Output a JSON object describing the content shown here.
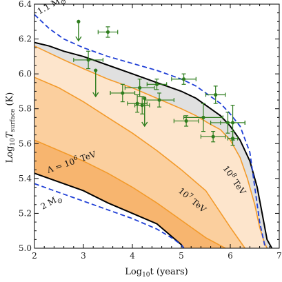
{
  "chart_data": {
    "type": "line",
    "xlabel": "Log",
    "xlabel_sub": "10",
    "xlabel_rest": "t (years)",
    "ylabel": "Log",
    "ylabel_sub": "10",
    "ylabel_T": "T",
    "ylabel_T_sub": "surface",
    "ylabel_rest": " (K)",
    "xlim": [
      2,
      7
    ],
    "ylim": [
      5.0,
      6.4
    ],
    "xticks": [
      2,
      3,
      4,
      5,
      6,
      7
    ],
    "yticks": [
      5.0,
      5.2,
      5.4,
      5.6,
      5.8,
      6.0,
      6.2,
      6.4
    ],
    "xtick_labels": [
      "2",
      "3",
      "4",
      "5",
      "6",
      "7"
    ],
    "ytick_labels": [
      "5.0",
      "5.2",
      "5.4",
      "5.6",
      "5.8",
      "6.0",
      "6.2",
      "6.4"
    ],
    "colors": {
      "band_light": "#fde5cc",
      "band_mid": "#fbcf9e",
      "band_dark": "#f7b56f",
      "band_gray": "#e0e0e0",
      "orange_line": "#f39a2a",
      "black_line": "#000000",
      "blue_dash": "#1f3fd6",
      "data_green": "#2e7d1e"
    },
    "curves": {
      "mass_low": {
        "x": [
          2.0,
          2.3,
          2.6,
          3.0,
          3.5,
          4.0,
          4.5,
          5.0,
          5.3,
          5.6,
          5.8,
          6.0,
          6.2,
          6.4,
          6.5,
          6.6,
          6.7,
          6.75
        ],
        "y": [
          6.34,
          6.26,
          6.2,
          6.15,
          6.1,
          6.06,
          6.02,
          5.97,
          5.93,
          5.87,
          5.83,
          5.77,
          5.7,
          5.55,
          5.35,
          5.15,
          5.02,
          5.0
        ]
      },
      "mass_high": {
        "x": [
          2.0,
          2.5,
          3.0,
          3.5,
          4.0,
          4.5,
          4.8,
          5.0,
          5.05
        ],
        "y": [
          5.37,
          5.32,
          5.27,
          5.22,
          5.17,
          5.11,
          5.06,
          5.02,
          5.0
        ]
      },
      "upper_black": {
        "x": [
          2.0,
          2.3,
          2.6,
          3.0,
          3.5,
          4.0,
          4.5,
          5.0,
          5.3,
          5.6,
          5.8,
          6.0,
          6.2,
          6.4,
          6.55,
          6.65,
          6.75,
          6.85
        ],
        "y": [
          6.18,
          6.16,
          6.13,
          6.1,
          6.05,
          6.0,
          5.95,
          5.9,
          5.86,
          5.8,
          5.76,
          5.7,
          5.62,
          5.5,
          5.35,
          5.2,
          5.05,
          5.0
        ]
      },
      "lower_black": {
        "x": [
          2.0,
          2.5,
          3.0,
          3.5,
          4.0,
          4.5,
          5.0,
          5.05
        ],
        "y": [
          5.43,
          5.38,
          5.33,
          5.26,
          5.2,
          5.14,
          5.02,
          5.0
        ]
      },
      "lambda_1e8": {
        "x": [
          2.0,
          2.3,
          2.6,
          3.0,
          3.5,
          4.0,
          4.5,
          5.0,
          5.3,
          5.6,
          5.8,
          6.0,
          6.2,
          6.35,
          6.5,
          6.6,
          6.7,
          6.75
        ],
        "y": [
          6.16,
          6.12,
          6.08,
          6.03,
          5.97,
          5.92,
          5.86,
          5.8,
          5.76,
          5.71,
          5.68,
          5.62,
          5.52,
          5.4,
          5.25,
          5.12,
          5.03,
          5.0
        ]
      },
      "lambda_1e7": {
        "x": [
          2.0,
          2.5,
          3.0,
          3.5,
          4.0,
          4.5,
          5.0,
          5.5,
          6.0,
          6.3
        ],
        "y": [
          5.98,
          5.92,
          5.84,
          5.75,
          5.66,
          5.56,
          5.45,
          5.33,
          5.12,
          5.0
        ]
      },
      "lambda_1e6": {
        "x": [
          2.0,
          2.5,
          3.0,
          3.5,
          4.0,
          4.5,
          5.0,
          5.5,
          5.9
        ],
        "y": [
          5.62,
          5.56,
          5.5,
          5.43,
          5.35,
          5.26,
          5.16,
          5.06,
          5.0
        ]
      }
    },
    "observations": [
      {
        "x": 3.1,
        "y": 6.08,
        "xerr": 0.3,
        "yerr": 0.05
      },
      {
        "x": 3.5,
        "y": 6.24,
        "xerr": 0.2,
        "yerr": 0.03
      },
      {
        "x": 3.8,
        "y": 5.89,
        "xerr": 0.25,
        "yerr": 0.05
      },
      {
        "x": 4.15,
        "y": 5.92,
        "xerr": 0.3,
        "yerr": 0.05
      },
      {
        "x": 4.1,
        "y": 5.83,
        "xerr": 0.2,
        "yerr": 0.05
      },
      {
        "x": 4.2,
        "y": 5.82,
        "xerr": 0.15,
        "yerr": 0.05
      },
      {
        "x": 4.5,
        "y": 5.94,
        "xerr": 0.2,
        "yerr": 0.03
      },
      {
        "x": 4.55,
        "y": 5.85,
        "xerr": 0.3,
        "yerr": 0.04
      },
      {
        "x": 5.05,
        "y": 5.97,
        "xerr": 0.25,
        "yerr": 0.03
      },
      {
        "x": 5.1,
        "y": 5.73,
        "xerr": 0.25,
        "yerr": 0.03
      },
      {
        "x": 5.45,
        "y": 5.75,
        "xerr": 0.4,
        "yerr": 0.08
      },
      {
        "x": 5.7,
        "y": 5.88,
        "xerr": 0.2,
        "yerr": 0.05
      },
      {
        "x": 5.65,
        "y": 5.64,
        "xerr": 0.25,
        "yerr": 0.03
      },
      {
        "x": 5.95,
        "y": 5.72,
        "xerr": 0.35,
        "yerr": 0.06
      },
      {
        "x": 6.05,
        "y": 5.72,
        "xerr": 0.25,
        "yerr": 0.1
      },
      {
        "x": 6.05,
        "y": 5.63,
        "xerr": 0.1,
        "yerr": 0.04
      }
    ],
    "upper_limits": [
      {
        "x": 2.9,
        "y": 6.3,
        "to": 6.19
      },
      {
        "x": 3.25,
        "y": 6.02,
        "to": 5.87
      },
      {
        "x": 4.25,
        "y": 5.86,
        "to": 5.7
      }
    ],
    "annotations": {
      "m_low_a": "1.1 M",
      "m_low_b": "⊙",
      "m_high_a": "2 M",
      "m_high_b": "⊙",
      "lam6_a": "Λ = 10",
      "lam6_b": "6",
      "lam6_c": " TeV",
      "lam7_a": "10",
      "lam7_b": "7",
      "lam7_c": " TeV",
      "lam8_a": "10",
      "lam8_b": "8",
      "lam8_c": " TeV"
    }
  }
}
